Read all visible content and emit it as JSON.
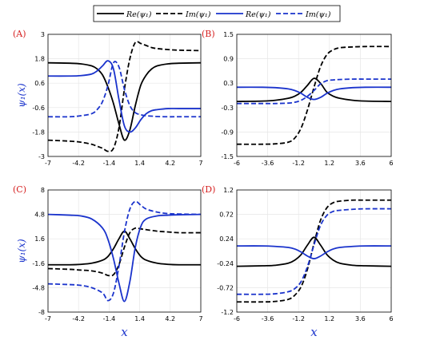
{
  "colors": {
    "black_series": "#000000",
    "blue_series": "#1a33cc",
    "panel_label": "#d62020",
    "grid": "#e6e6e6"
  },
  "legend": {
    "entries": [
      {
        "label": "Re(ψ₁)",
        "color": "#000000",
        "style": "solid"
      },
      {
        "label": "Im(ψ₁)",
        "color": "#000000",
        "style": "dashed"
      },
      {
        "label": "Re(ψ₁)",
        "color": "#1a33cc",
        "style": "solid"
      },
      {
        "label": "Im(ψ₁)",
        "color": "#1a33cc",
        "style": "dashed"
      }
    ]
  },
  "chart_data": [
    {
      "type": "line",
      "panel": "(A)",
      "xlabel": "",
      "ylabel": "ψ₁(x)",
      "xlim": [
        -7,
        7
      ],
      "ylim": [
        -3,
        3
      ],
      "xticks": [
        "-7",
        "-4.2",
        "-1.4",
        "1.4",
        "4.2",
        "7"
      ],
      "yticks": [
        "-3",
        "-1.8",
        "-0.6",
        "0.6",
        "1.8",
        "3"
      ],
      "x": [
        -7,
        -5,
        -4,
        -3,
        -2.5,
        -2,
        -1.5,
        -1,
        -0.5,
        0,
        0.5,
        1,
        1.5,
        2,
        2.5,
        3,
        4,
        5,
        7
      ],
      "series": [
        {
          "color": "#000000",
          "style": "solid",
          "values": [
            1.6,
            1.58,
            1.55,
            1.45,
            1.3,
            1.0,
            0.4,
            -0.4,
            -1.4,
            -2.2,
            -1.7,
            -0.5,
            0.5,
            1.0,
            1.3,
            1.45,
            1.55,
            1.58,
            1.6
          ]
        },
        {
          "color": "#000000",
          "style": "dashed",
          "values": [
            -2.2,
            -2.25,
            -2.3,
            -2.4,
            -2.5,
            -2.6,
            -2.75,
            -2.6,
            -1.6,
            0.3,
            1.8,
            2.6,
            2.55,
            2.45,
            2.35,
            2.3,
            2.25,
            2.22,
            2.2
          ]
        },
        {
          "color": "#1a33cc",
          "style": "solid",
          "values": [
            0.95,
            0.95,
            0.97,
            1.05,
            1.2,
            1.45,
            1.7,
            1.3,
            -0.2,
            -1.5,
            -1.8,
            -1.6,
            -1.2,
            -0.9,
            -0.75,
            -0.7,
            -0.65,
            -0.65,
            -0.65
          ]
        },
        {
          "color": "#1a33cc",
          "style": "dashed",
          "values": [
            -1.05,
            -1.05,
            -1.0,
            -0.9,
            -0.7,
            -0.3,
            0.5,
            1.6,
            1.4,
            0.3,
            -0.5,
            -0.85,
            -0.95,
            -1.0,
            -1.02,
            -1.04,
            -1.05,
            -1.05,
            -1.05
          ]
        }
      ]
    },
    {
      "type": "line",
      "panel": "(B)",
      "xlabel": "",
      "ylabel": "",
      "xlim": [
        -6,
        6
      ],
      "ylim": [
        -1.5,
        1.5
      ],
      "xticks": [
        "-6",
        "-3.6",
        "-1.2",
        "1.2",
        "3.6",
        "6"
      ],
      "yticks": [
        "-1.5",
        "-0.9",
        "-0.3",
        "0.3",
        "0.9",
        "1.5"
      ],
      "x": [
        -6,
        -4,
        -3,
        -2,
        -1.5,
        -1,
        -0.5,
        0,
        0.5,
        1,
        1.5,
        2,
        3,
        4,
        6
      ],
      "series": [
        {
          "color": "#000000",
          "style": "solid",
          "values": [
            -0.15,
            -0.14,
            -0.12,
            -0.07,
            -0.02,
            0.08,
            0.25,
            0.42,
            0.3,
            0.08,
            -0.02,
            -0.07,
            -0.12,
            -0.14,
            -0.15
          ]
        },
        {
          "color": "#000000",
          "style": "dashed",
          "values": [
            -1.2,
            -1.2,
            -1.19,
            -1.15,
            -1.05,
            -0.8,
            -0.35,
            0.2,
            0.7,
            1.0,
            1.12,
            1.17,
            1.19,
            1.2,
            1.2
          ]
        },
        {
          "color": "#1a33cc",
          "style": "solid",
          "values": [
            0.2,
            0.2,
            0.19,
            0.16,
            0.12,
            0.05,
            -0.05,
            -0.1,
            -0.05,
            0.05,
            0.12,
            0.16,
            0.19,
            0.2,
            0.2
          ]
        },
        {
          "color": "#1a33cc",
          "style": "dashed",
          "values": [
            -0.2,
            -0.2,
            -0.2,
            -0.19,
            -0.17,
            -0.12,
            -0.02,
            0.12,
            0.28,
            0.36,
            0.38,
            0.39,
            0.4,
            0.4,
            0.4
          ]
        }
      ]
    },
    {
      "type": "line",
      "panel": "(C)",
      "xlabel": "x",
      "ylabel": "ψ₁(x)",
      "xlim": [
        -7,
        7
      ],
      "ylim": [
        -8,
        8
      ],
      "xticks": [
        "-7",
        "-4.2",
        "-1.4",
        "1.4",
        "4.2",
        "7"
      ],
      "yticks": [
        "-8",
        "-4.8",
        "-1.6",
        "1.6",
        "4.8",
        "8"
      ],
      "x": [
        -7,
        -5,
        -4,
        -3,
        -2,
        -1.5,
        -1,
        -0.5,
        0,
        0.5,
        1,
        1.5,
        2,
        3,
        4,
        5,
        7
      ],
      "series": [
        {
          "color": "#000000",
          "style": "solid",
          "values": [
            -1.8,
            -1.8,
            -1.75,
            -1.6,
            -1.2,
            -0.7,
            0.3,
            1.6,
            2.6,
            1.6,
            0.3,
            -0.7,
            -1.2,
            -1.6,
            -1.75,
            -1.8,
            -1.8
          ]
        },
        {
          "color": "#000000",
          "style": "dashed",
          "values": [
            -2.3,
            -2.4,
            -2.5,
            -2.6,
            -2.9,
            -3.2,
            -3.1,
            -1.8,
            0.5,
            2.4,
            3.0,
            2.9,
            2.8,
            2.6,
            2.5,
            2.4,
            2.4
          ]
        },
        {
          "color": "#1a33cc",
          "style": "solid",
          "values": [
            4.8,
            4.7,
            4.6,
            4.2,
            3.0,
            1.5,
            -1.0,
            -4.2,
            -6.6,
            -4.0,
            0.5,
            3.2,
            4.2,
            4.6,
            4.7,
            4.75,
            4.8
          ]
        },
        {
          "color": "#1a33cc",
          "style": "dashed",
          "values": [
            -4.3,
            -4.4,
            -4.5,
            -4.8,
            -5.5,
            -6.5,
            -5.5,
            -2.0,
            2.5,
            5.5,
            6.5,
            6.0,
            5.5,
            5.1,
            4.9,
            4.85,
            4.8
          ]
        }
      ]
    },
    {
      "type": "line",
      "panel": "(D)",
      "xlabel": "x",
      "ylabel": "",
      "xlim": [
        -6,
        6
      ],
      "ylim": [
        -1.2,
        1.2
      ],
      "xticks": [
        "-6",
        "-3.6",
        "-1.2",
        "1.2",
        "3.6",
        "6"
      ],
      "yticks": [
        "-1.2",
        "-0.72",
        "-0.24",
        "0.24",
        "0.72",
        "1.2"
      ],
      "x": [
        -6,
        -4,
        -3,
        -2,
        -1.5,
        -1,
        -0.5,
        0,
        0.5,
        1,
        1.5,
        2,
        3,
        4,
        6
      ],
      "series": [
        {
          "color": "#000000",
          "style": "solid",
          "values": [
            -0.3,
            -0.29,
            -0.28,
            -0.24,
            -0.18,
            -0.07,
            0.12,
            0.27,
            0.12,
            -0.07,
            -0.18,
            -0.24,
            -0.28,
            -0.29,
            -0.3
          ]
        },
        {
          "color": "#000000",
          "style": "dashed",
          "values": [
            -1.0,
            -1.0,
            -0.99,
            -0.95,
            -0.87,
            -0.7,
            -0.35,
            0.15,
            0.6,
            0.85,
            0.95,
            0.98,
            1.0,
            1.0,
            1.0
          ]
        },
        {
          "color": "#1a33cc",
          "style": "solid",
          "values": [
            0.1,
            0.1,
            0.09,
            0.07,
            0.04,
            -0.02,
            -0.1,
            -0.15,
            -0.1,
            -0.02,
            0.04,
            0.07,
            0.09,
            0.1,
            0.1
          ]
        },
        {
          "color": "#1a33cc",
          "style": "dashed",
          "values": [
            -0.85,
            -0.85,
            -0.84,
            -0.8,
            -0.74,
            -0.6,
            -0.3,
            0.12,
            0.5,
            0.7,
            0.78,
            0.8,
            0.82,
            0.83,
            0.83
          ]
        }
      ]
    }
  ]
}
